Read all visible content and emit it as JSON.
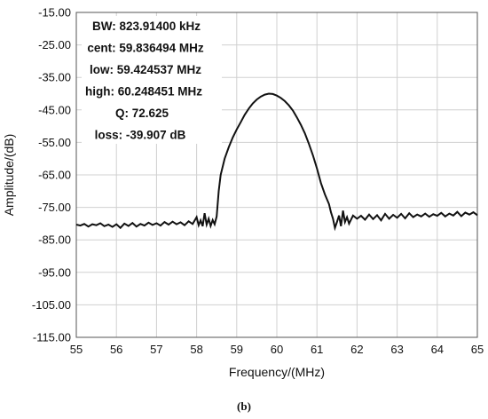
{
  "chart_data": {
    "type": "line",
    "xlabel": "Frequency/(MHz)",
    "ylabel": "Amplitude/(dB)",
    "xlim": [
      55,
      65
    ],
    "ylim": [
      -115,
      -15
    ],
    "x_ticks": [
      55,
      56,
      57,
      58,
      59,
      60,
      61,
      62,
      63,
      64,
      65
    ],
    "y_ticks": [
      -15,
      -25,
      -35,
      -45,
      -55,
      -65,
      -75,
      -85,
      -95,
      -105,
      -115
    ],
    "x_tick_labels": [
      "55",
      "56",
      "57",
      "58",
      "59",
      "60",
      "61",
      "62",
      "63",
      "64",
      "65"
    ],
    "y_tick_labels": [
      "-15.00",
      "-25.00",
      "-35.00",
      "-45.00",
      "-55.00",
      "-65.00",
      "-75.00",
      "-85.00",
      "-95.00",
      "-105.00",
      "-115.00"
    ],
    "grid": true,
    "annotations": [
      "BW: 823.91400 kHz",
      "cent: 59.836494 MHz",
      "low: 59.424537 MHz",
      "high: 60.248451 MHz",
      "Q: 72.625",
      "loss: -39.907 dB"
    ],
    "sublabel": "(b)",
    "series": [
      {
        "color": "#111111",
        "points": [
          [
            55.0,
            -80.3
          ],
          [
            55.1,
            -80.6
          ],
          [
            55.2,
            -80.1
          ],
          [
            55.3,
            -80.9
          ],
          [
            55.4,
            -80.2
          ],
          [
            55.5,
            -80.5
          ],
          [
            55.6,
            -79.9
          ],
          [
            55.7,
            -80.8
          ],
          [
            55.8,
            -80.3
          ],
          [
            55.9,
            -81.0
          ],
          [
            56.0,
            -80.2
          ],
          [
            56.1,
            -81.3
          ],
          [
            56.2,
            -80.0
          ],
          [
            56.3,
            -80.7
          ],
          [
            56.4,
            -79.8
          ],
          [
            56.5,
            -80.9
          ],
          [
            56.6,
            -80.1
          ],
          [
            56.7,
            -80.6
          ],
          [
            56.8,
            -79.7
          ],
          [
            56.9,
            -80.4
          ],
          [
            57.0,
            -79.9
          ],
          [
            57.1,
            -80.6
          ],
          [
            57.2,
            -79.5
          ],
          [
            57.3,
            -80.3
          ],
          [
            57.4,
            -79.4
          ],
          [
            57.5,
            -80.2
          ],
          [
            57.6,
            -79.6
          ],
          [
            57.7,
            -80.5
          ],
          [
            57.8,
            -79.3
          ],
          [
            57.9,
            -80.1
          ],
          [
            58.0,
            -78.0
          ],
          [
            58.05,
            -80.5
          ],
          [
            58.1,
            -79.0
          ],
          [
            58.15,
            -80.8
          ],
          [
            58.2,
            -76.8
          ],
          [
            58.25,
            -80.3
          ],
          [
            58.3,
            -78.5
          ],
          [
            58.35,
            -80.7
          ],
          [
            58.4,
            -78.9
          ],
          [
            58.45,
            -80.2
          ],
          [
            58.5,
            -77.8
          ],
          [
            58.55,
            -70.0
          ],
          [
            58.6,
            -65.0
          ],
          [
            58.7,
            -60.0
          ],
          [
            58.8,
            -56.5
          ],
          [
            58.9,
            -53.5
          ],
          [
            59.0,
            -51.0
          ],
          [
            59.1,
            -48.8
          ],
          [
            59.2,
            -46.5
          ],
          [
            59.3,
            -44.6
          ],
          [
            59.4,
            -43.0
          ],
          [
            59.5,
            -41.8
          ],
          [
            59.6,
            -40.9
          ],
          [
            59.7,
            -40.3
          ],
          [
            59.8,
            -40.0
          ],
          [
            59.9,
            -40.1
          ],
          [
            60.0,
            -40.6
          ],
          [
            60.1,
            -41.3
          ],
          [
            60.2,
            -42.3
          ],
          [
            60.3,
            -43.6
          ],
          [
            60.4,
            -45.2
          ],
          [
            60.5,
            -47.3
          ],
          [
            60.6,
            -49.6
          ],
          [
            60.7,
            -52.2
          ],
          [
            60.8,
            -55.5
          ],
          [
            60.9,
            -59.0
          ],
          [
            61.0,
            -63.0
          ],
          [
            61.1,
            -67.5
          ],
          [
            61.2,
            -71.0
          ],
          [
            61.3,
            -74.0
          ],
          [
            61.35,
            -76.5
          ],
          [
            61.4,
            -78.5
          ],
          [
            61.45,
            -81.3
          ],
          [
            61.5,
            -79.5
          ],
          [
            61.55,
            -77.5
          ],
          [
            61.6,
            -80.8
          ],
          [
            61.65,
            -76.0
          ],
          [
            61.7,
            -79.5
          ],
          [
            61.75,
            -78.0
          ],
          [
            61.8,
            -80.0
          ],
          [
            61.9,
            -77.5
          ],
          [
            62.0,
            -78.5
          ],
          [
            62.1,
            -77.6
          ],
          [
            62.2,
            -78.8
          ],
          [
            62.3,
            -77.2
          ],
          [
            62.4,
            -78.6
          ],
          [
            62.5,
            -77.4
          ],
          [
            62.6,
            -79.0
          ],
          [
            62.7,
            -77.0
          ],
          [
            62.8,
            -78.5
          ],
          [
            62.9,
            -77.3
          ],
          [
            63.0,
            -78.2
          ],
          [
            63.1,
            -77.0
          ],
          [
            63.2,
            -78.4
          ],
          [
            63.3,
            -76.8
          ],
          [
            63.4,
            -78.0
          ],
          [
            63.5,
            -77.2
          ],
          [
            63.6,
            -77.8
          ],
          [
            63.7,
            -76.9
          ],
          [
            63.8,
            -77.9
          ],
          [
            63.9,
            -77.1
          ],
          [
            64.0,
            -77.6
          ],
          [
            64.1,
            -76.7
          ],
          [
            64.2,
            -77.8
          ],
          [
            64.3,
            -76.9
          ],
          [
            64.4,
            -77.5
          ],
          [
            64.5,
            -76.4
          ],
          [
            64.6,
            -77.7
          ],
          [
            64.7,
            -76.6
          ],
          [
            64.8,
            -77.2
          ],
          [
            64.9,
            -76.5
          ],
          [
            65.0,
            -77.4
          ]
        ]
      }
    ]
  }
}
